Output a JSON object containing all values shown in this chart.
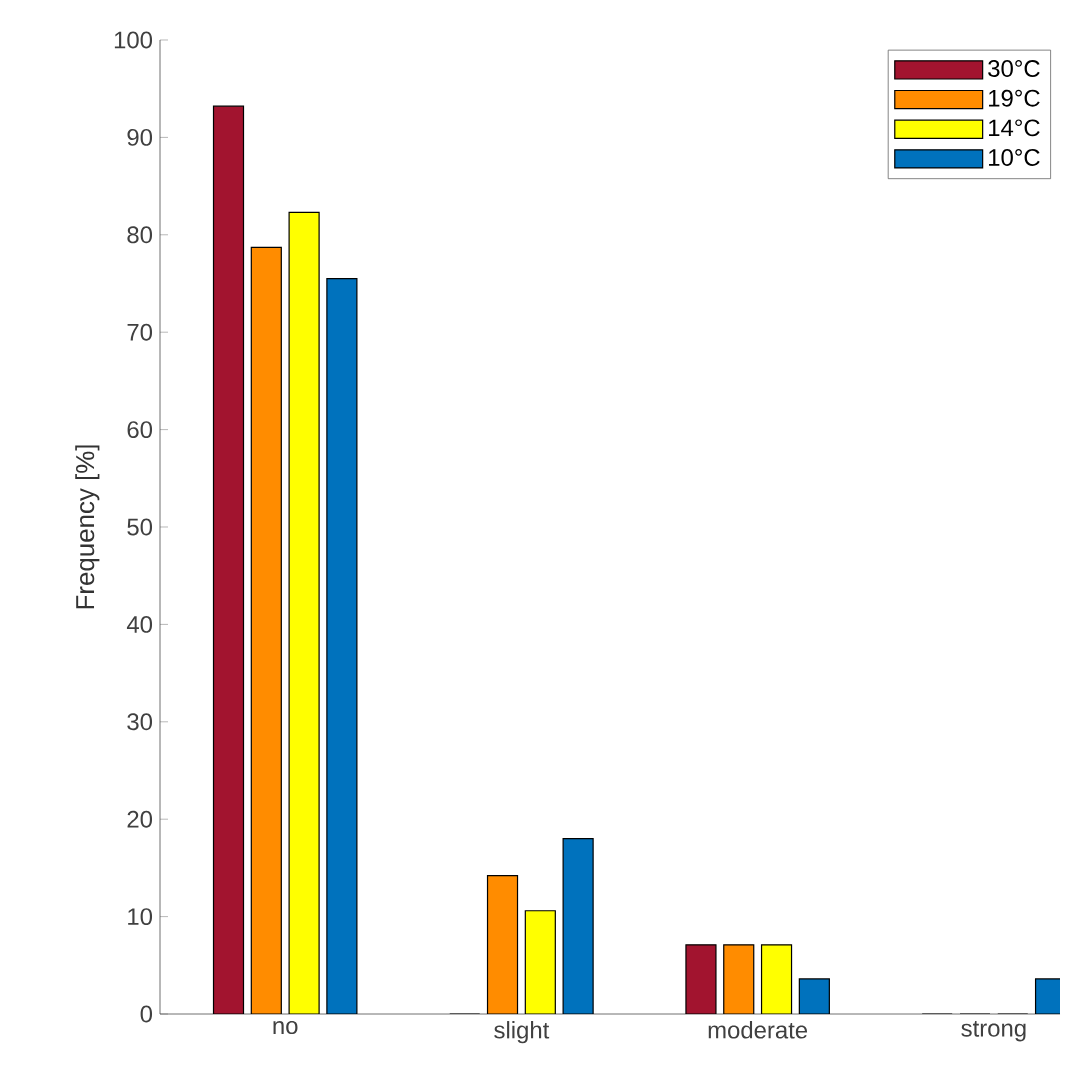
{
  "chart_data": {
    "type": "bar",
    "ylabel": "Frequency [%]",
    "categories": [
      "no",
      "slight",
      "moderate",
      "strong"
    ],
    "series": [
      {
        "name": "30°C",
        "color": "#a2142f",
        "values": [
          93.2,
          0,
          7.1,
          0
        ]
      },
      {
        "name": "19°C",
        "color": "#ff8c00",
        "values": [
          78.7,
          14.2,
          7.1,
          0
        ]
      },
      {
        "name": "14°C",
        "color": "#ffff00",
        "values": [
          82.3,
          10.6,
          7.1,
          0
        ]
      },
      {
        "name": "10°C",
        "color": "#0072bd",
        "values": [
          75.5,
          18.0,
          3.6,
          3.6
        ]
      }
    ],
    "ylim": [
      0,
      100
    ],
    "yticks": [
      0,
      10,
      20,
      30,
      40,
      50,
      60,
      70,
      80,
      90,
      100
    ],
    "legend": "top right",
    "grid": false
  }
}
